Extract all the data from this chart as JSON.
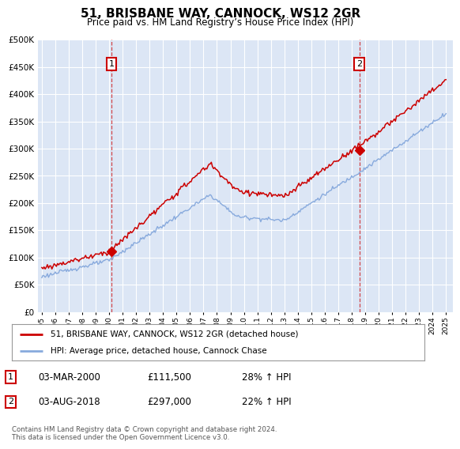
{
  "title": "51, BRISBANE WAY, CANNOCK, WS12 2GR",
  "subtitle": "Price paid vs. HM Land Registry’s House Price Index (HPI)",
  "background_color": "#dce6f5",
  "grid_color": "#ffffff",
  "red_line_color": "#cc0000",
  "blue_line_color": "#88aadd",
  "marker1_x": 2000.17,
  "marker1_y": 111500,
  "marker2_x": 2018.58,
  "marker2_y": 297000,
  "legend_line1": "51, BRISBANE WAY, CANNOCK, WS12 2GR (detached house)",
  "legend_line2": "HPI: Average price, detached house, Cannock Chase",
  "footer": "Contains HM Land Registry data © Crown copyright and database right 2024.\nThis data is licensed under the Open Government Licence v3.0.",
  "ylim": [
    0,
    500000
  ],
  "yticks": [
    0,
    50000,
    100000,
    150000,
    200000,
    250000,
    300000,
    350000,
    400000,
    450000,
    500000
  ],
  "xlim_start": 1994.7,
  "xlim_end": 2025.5
}
